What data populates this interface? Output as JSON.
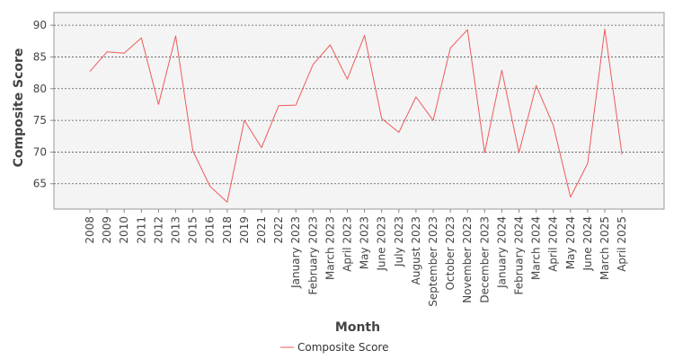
{
  "chart_data": {
    "type": "line",
    "title": "",
    "xlabel": "Month",
    "ylabel": "Composite Score",
    "categories": [
      "2008",
      "2009",
      "2010",
      "2011",
      "2012",
      "2013",
      "2015",
      "2016",
      "2018",
      "2019",
      "2021",
      "2022",
      "January 2023",
      "February 2023",
      "March 2023",
      "April 2023",
      "May 2023",
      "June 2023",
      "July 2023",
      "August 2023",
      "September 2023",
      "October 2023",
      "November 2023",
      "December 2023",
      "January 2024",
      "February 2024",
      "March 2024",
      "April 2024",
      "May 2024",
      "June 2024",
      "March 2025",
      "April 2025"
    ],
    "series": [
      {
        "name": "Composite Score",
        "color": "#f05a5a",
        "values": [
          82.7,
          85.8,
          85.6,
          88.0,
          77.5,
          88.3,
          70.2,
          64.6,
          62.1,
          75.0,
          70.7,
          77.3,
          77.4,
          83.8,
          86.9,
          81.5,
          88.4,
          75.3,
          73.1,
          78.7,
          75.0,
          86.4,
          89.3,
          69.9,
          82.9,
          69.9,
          80.5,
          74.2,
          62.9,
          68.2,
          89.4,
          69.6
        ]
      }
    ],
    "ylim": [
      61,
      92
    ],
    "yticks": [
      65,
      70,
      75,
      80,
      85,
      90
    ],
    "grid": true,
    "legend": "bottom-center",
    "plot_background": "#f4f4f4",
    "grid_color": "#555555"
  }
}
